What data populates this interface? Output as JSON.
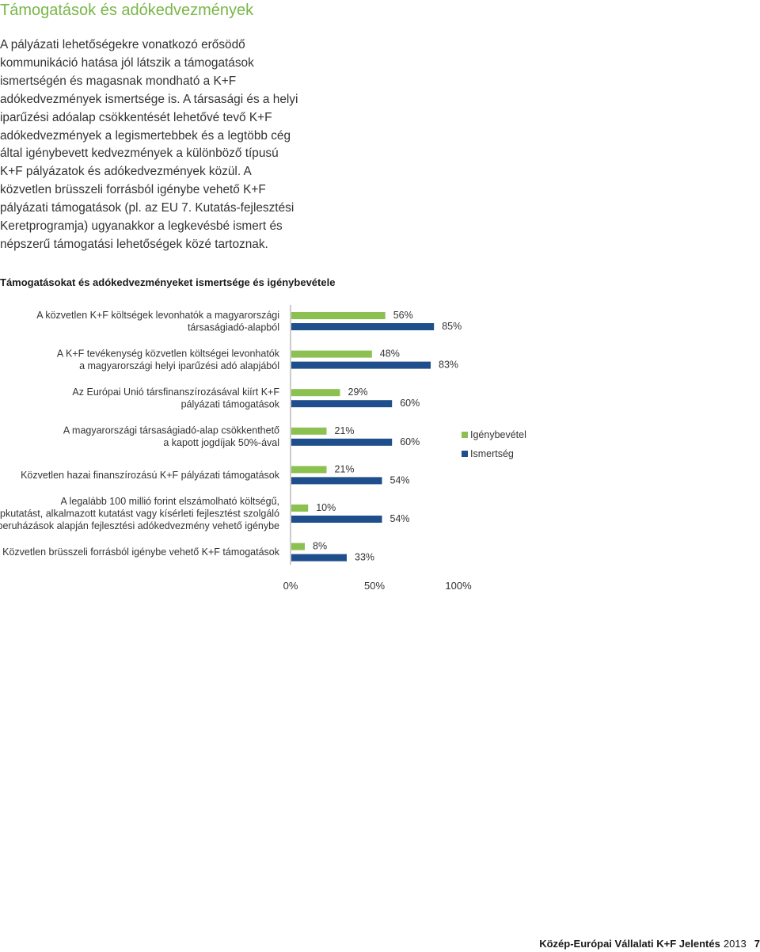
{
  "section_title": "Támogatások és adókedvezmények",
  "intro_text": "A pályázati lehetőségekre vonatkozó erősödő kommunikáció hatása jól látszik a támogatások ismertségén és magasnak mondható a K+F adókedvezmények ismertsége is. A társasági és a helyi iparűzési adóalap csökkentését lehetővé tevő K+F adókedvezmények a legismertebbek és a legtöbb cég által igénybevett kedvezmények a különböző típusú K+F pályázatok és adókedvezmények közül. A közvetlen brüsszeli forrásból igénybe vehető K+F pályázati támogatások (pl. az EU 7. Kutatás-fejlesztési Keretprogramja) ugyanakkor a legkevésbé ismert és népszerű támogatási lehetőségek közé tartoznak.",
  "chart_title": "Támogatásokat és adókedvezményeket ismertsége és igénybevétele",
  "chart_data": {
    "type": "bar",
    "orientation": "horizontal",
    "categories": [
      [
        "A közvetlen K+F költségek levonhatók a magyarországi",
        "társaságiadó-alapból"
      ],
      [
        "A K+F tevékenység közvetlen költségei levonhatók",
        "a magyarországi helyi iparűzési adó alapjából"
      ],
      [
        "Az Európai Unió társfinanszírozásával kiírt K+F",
        "pályázati támogatások"
      ],
      [
        "A magyarországi társaságiadó-alap csökkenthető",
        "a kapott jogdíjak 50%-ával"
      ],
      [
        "Közvetlen hazai finanszírozású K+F pályázati támogatások"
      ],
      [
        "A legalább 100 millió forint elszámolható költségű,",
        "alapkutatást, alkalmazott kutatást vagy kísérleti fejlesztést szolgáló",
        "beruházások alapján fejlesztési adókedvezmény vehető igénybe"
      ],
      [
        "Közvetlen brüsszeli forrásból igénybe vehető K+F támogatások"
      ]
    ],
    "series": [
      {
        "name": "Igénybevétel",
        "color": "#8cc152",
        "values": [
          56,
          48,
          29,
          21,
          21,
          10,
          8
        ]
      },
      {
        "name": "Ismertség",
        "color": "#1f4e8c",
        "values": [
          85,
          83,
          60,
          60,
          54,
          54,
          33
        ]
      }
    ],
    "value_suffix": "%",
    "xlim": [
      0,
      100
    ],
    "xticks": [
      "0%",
      "50%",
      "100%"
    ],
    "grid": false,
    "legend_position": "right"
  },
  "footer": {
    "report": "Közép-Európai Vállalati K+F Jelentés",
    "year": "2013",
    "page": "7"
  }
}
